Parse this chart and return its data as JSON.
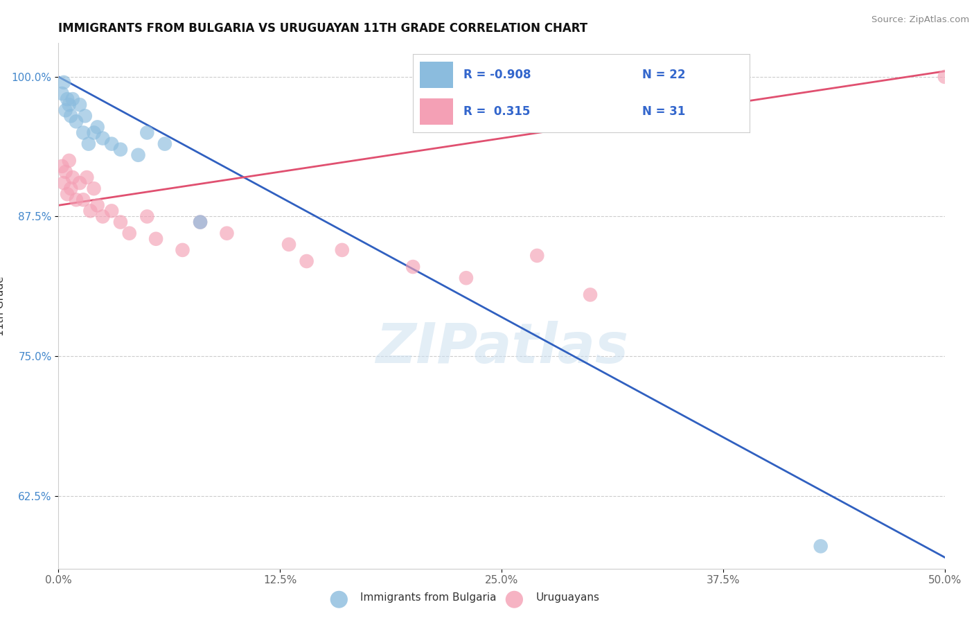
{
  "title": "IMMIGRANTS FROM BULGARIA VS URUGUAYAN 11TH GRADE CORRELATION CHART",
  "source": "Source: ZipAtlas.com",
  "xlabel_values": [
    0.0,
    12.5,
    25.0,
    37.5,
    50.0
  ],
  "ylabel": "11th Grade",
  "ylabel_values": [
    62.5,
    75.0,
    87.5,
    100.0
  ],
  "xmin": 0.0,
  "xmax": 50.0,
  "ymin": 56.0,
  "ymax": 103.0,
  "blue_label": "Immigrants from Bulgaria",
  "pink_label": "Uruguayans",
  "blue_R": "-0.908",
  "blue_N": "22",
  "pink_R": "0.315",
  "pink_N": "31",
  "blue_color": "#8bbcde",
  "pink_color": "#f4a0b5",
  "blue_line_color": "#3060c0",
  "pink_line_color": "#e05070",
  "watermark": "ZIPatlas",
  "blue_line_x0": 0.0,
  "blue_line_y0": 100.0,
  "blue_line_x1": 50.0,
  "blue_line_y1": 57.0,
  "pink_line_x0": 0.0,
  "pink_line_y0": 88.5,
  "pink_line_x1": 50.0,
  "pink_line_y1": 100.5,
  "blue_scatter_x": [
    0.2,
    0.3,
    0.4,
    0.5,
    0.6,
    0.7,
    0.8,
    1.0,
    1.2,
    1.4,
    1.5,
    1.7,
    2.0,
    2.2,
    2.5,
    3.0,
    3.5,
    4.5,
    5.0,
    6.0,
    8.0,
    43.0
  ],
  "blue_scatter_y": [
    98.5,
    99.5,
    97.0,
    98.0,
    97.5,
    96.5,
    98.0,
    96.0,
    97.5,
    95.0,
    96.5,
    94.0,
    95.0,
    95.5,
    94.5,
    94.0,
    93.5,
    93.0,
    95.0,
    94.0,
    87.0,
    58.0
  ],
  "pink_scatter_x": [
    0.2,
    0.3,
    0.4,
    0.5,
    0.6,
    0.7,
    0.8,
    1.0,
    1.2,
    1.4,
    1.6,
    1.8,
    2.0,
    2.2,
    2.5,
    3.0,
    3.5,
    4.0,
    5.0,
    5.5,
    7.0,
    8.0,
    9.5,
    13.0,
    14.0,
    16.0,
    20.0,
    23.0,
    27.0,
    30.0,
    50.0
  ],
  "pink_scatter_y": [
    92.0,
    90.5,
    91.5,
    89.5,
    92.5,
    90.0,
    91.0,
    89.0,
    90.5,
    89.0,
    91.0,
    88.0,
    90.0,
    88.5,
    87.5,
    88.0,
    87.0,
    86.0,
    87.5,
    85.5,
    84.5,
    87.0,
    86.0,
    85.0,
    83.5,
    84.5,
    83.0,
    82.0,
    84.0,
    80.5,
    100.0
  ]
}
